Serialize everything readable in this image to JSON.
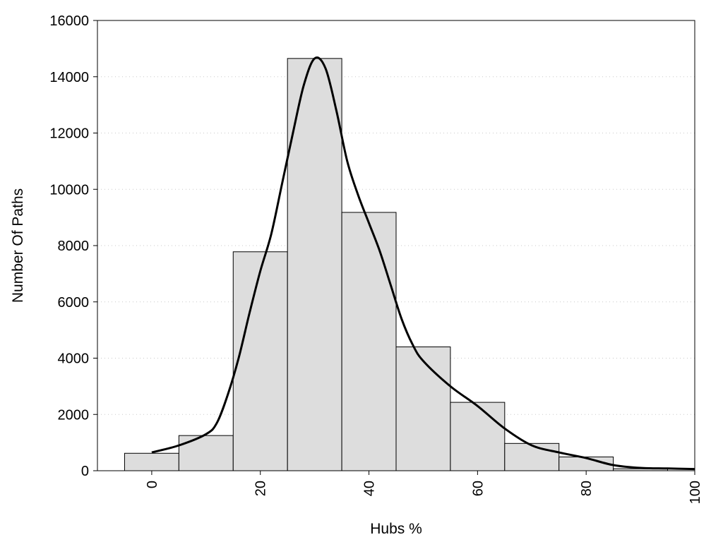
{
  "chart_data": {
    "type": "bar",
    "xlabel": "Hubs %",
    "ylabel": "Number Of Paths",
    "xlim": [
      -10,
      100
    ],
    "ylim": [
      0,
      16000
    ],
    "xticks": [
      0,
      20,
      40,
      60,
      80,
      100
    ],
    "yticks": [
      0,
      2000,
      4000,
      6000,
      8000,
      10000,
      12000,
      14000,
      16000
    ],
    "grid": "horizontal-dotted",
    "bin_width": 10,
    "bar_color": "#dddddd",
    "bars": [
      {
        "center": 0,
        "value": 620
      },
      {
        "center": 10,
        "value": 1250
      },
      {
        "center": 20,
        "value": 7780
      },
      {
        "center": 30,
        "value": 14650
      },
      {
        "center": 40,
        "value": 9180
      },
      {
        "center": 50,
        "value": 4400
      },
      {
        "center": 60,
        "value": 2430
      },
      {
        "center": 70,
        "value": 970
      },
      {
        "center": 80,
        "value": 490
      },
      {
        "center": 90,
        "value": 70
      }
    ],
    "curve": {
      "color": "#000000",
      "points": [
        [
          0,
          650
        ],
        [
          5,
          900
        ],
        [
          10,
          1300
        ],
        [
          12,
          1700
        ],
        [
          14,
          2700
        ],
        [
          16,
          4000
        ],
        [
          18,
          5600
        ],
        [
          20,
          7100
        ],
        [
          22,
          8400
        ],
        [
          24,
          10200
        ],
        [
          26,
          12000
        ],
        [
          28,
          13700
        ],
        [
          30,
          14650
        ],
        [
          32,
          14300
        ],
        [
          34,
          12800
        ],
        [
          36,
          11000
        ],
        [
          38,
          9800
        ],
        [
          40,
          8800
        ],
        [
          42,
          7800
        ],
        [
          44,
          6600
        ],
        [
          46,
          5400
        ],
        [
          48,
          4500
        ],
        [
          50,
          3900
        ],
        [
          55,
          3000
        ],
        [
          60,
          2300
        ],
        [
          65,
          1500
        ],
        [
          70,
          900
        ],
        [
          75,
          650
        ],
        [
          80,
          450
        ],
        [
          85,
          200
        ],
        [
          90,
          100
        ],
        [
          95,
          80
        ],
        [
          100,
          60
        ]
      ]
    }
  }
}
